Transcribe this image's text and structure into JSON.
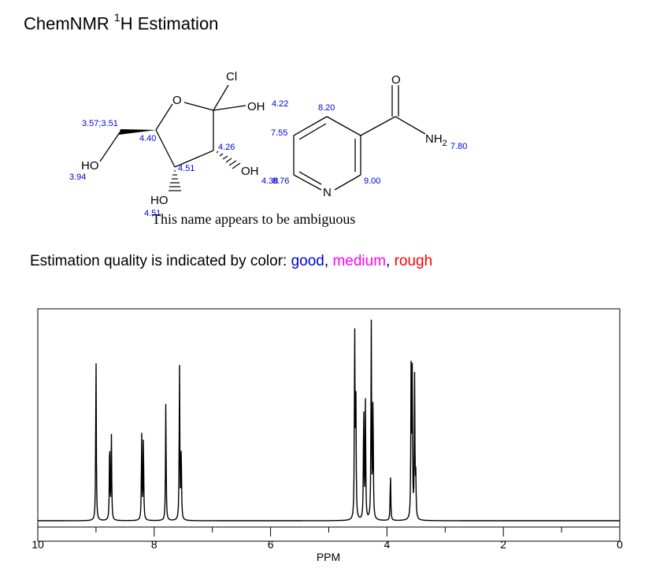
{
  "header": {
    "title_prefix": "ChemNMR ",
    "title_sup": "1",
    "title_suffix": "H Estimation"
  },
  "molecule": {
    "atoms": {
      "cl": "Cl",
      "o_ring": "O",
      "oh_top": "OH",
      "oh_right": "OH",
      "ho_bottom": "HO",
      "ho_left": "HO",
      "o_carbonyl": "O",
      "nh2": "NH",
      "nh2_sub": "2",
      "n_ring": "N"
    },
    "shifts": [
      "4.22",
      "8.20",
      "3.57;3.51",
      "7.55",
      "4.40",
      "4.26",
      "7.80",
      "4.51",
      "3.94",
      "4.38",
      "8.76",
      "9.00",
      "4.51"
    ]
  },
  "notice": "This name appears to be ambiguous",
  "legend": {
    "prefix": "Estimation quality is indicated by color: ",
    "good": "good",
    "sep1": ", ",
    "medium": "medium",
    "sep2": ", ",
    "rough": "rough",
    "colors": {
      "good": "#0000dd",
      "medium": "#ff00ff",
      "rough": "#ff0000"
    }
  },
  "chart_data": {
    "type": "line",
    "xlabel": "PPM",
    "xlim": [
      10,
      0
    ],
    "x_reversed": true,
    "tick_labels": [
      "10",
      "8",
      "6",
      "4",
      "2",
      "0"
    ],
    "peaks": [
      {
        "ppm": 9.0,
        "height": 0.81
      },
      {
        "ppm": 8.765,
        "height": 0.41
      },
      {
        "ppm": 8.735,
        "height": 0.41
      },
      {
        "ppm": 8.215,
        "height": 0.43
      },
      {
        "ppm": 8.185,
        "height": 0.41
      },
      {
        "ppm": 7.8,
        "height": 0.59
      },
      {
        "ppm": 7.565,
        "height": 0.76
      },
      {
        "ppm": 7.535,
        "height": 0.35
      },
      {
        "ppm": 4.555,
        "height": 0.94
      },
      {
        "ppm": 4.535,
        "height": 0.62
      },
      {
        "ppm": 4.4,
        "height": 0.57
      },
      {
        "ppm": 4.37,
        "height": 0.58
      },
      {
        "ppm": 4.27,
        "height": 0.97
      },
      {
        "ppm": 4.24,
        "height": 0.61
      },
      {
        "ppm": 3.94,
        "height": 0.24
      },
      {
        "ppm": 3.585,
        "height": 0.74
      },
      {
        "ppm": 3.565,
        "height": 0.7
      },
      {
        "ppm": 3.525,
        "height": 0.69
      },
      {
        "ppm": 3.505,
        "height": 0.2
      }
    ]
  }
}
